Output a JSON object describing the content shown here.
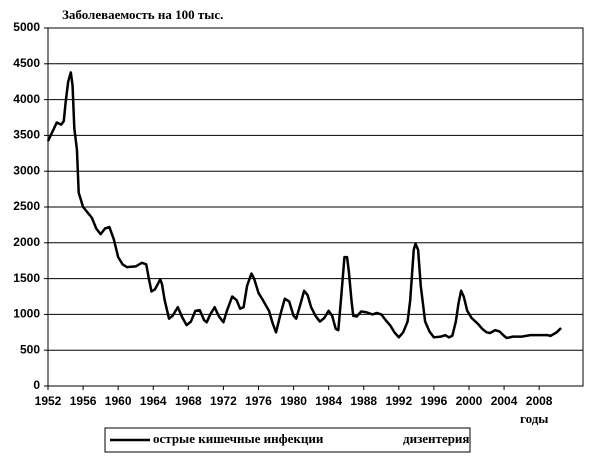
{
  "chart_data": {
    "type": "line",
    "title": "Заболеваемость на 100 тыс.",
    "x_label": "годы",
    "xlim": [
      1952,
      2013
    ],
    "ylim": [
      0,
      5000
    ],
    "xticks": [
      1952,
      1956,
      1960,
      1964,
      1968,
      1972,
      1976,
      1980,
      1984,
      1988,
      1992,
      1996,
      2000,
      2004,
      2008
    ],
    "yticks": [
      0,
      500,
      1000,
      1500,
      2000,
      2500,
      3000,
      3500,
      4000,
      4500,
      5000
    ],
    "grid": true,
    "series": [
      {
        "name": "острые кишечные инфекции",
        "color": "#000000",
        "x": [
          1952,
          1952.5,
          1953,
          1953.5,
          1953.8,
          1954,
          1954.3,
          1954.6,
          1954.8,
          1955,
          1955.3,
          1955.5,
          1956,
          1957,
          1957.5,
          1958,
          1958.5,
          1959,
          1959.5,
          1960,
          1960.5,
          1961,
          1962,
          1962.7,
          1963.2,
          1963.5,
          1963.8,
          1964.2,
          1964.8,
          1965,
          1965.3,
          1965.8,
          1966.2,
          1966.8,
          1967.3,
          1967.8,
          1968.3,
          1968.8,
          1969.3,
          1969.8,
          1970.1,
          1970.5,
          1971,
          1971.5,
          1972,
          1972.4,
          1973,
          1973.5,
          1973.9,
          1974.3,
          1974.7,
          1975.2,
          1975.5,
          1976,
          1976.5,
          1977.2,
          1977.6,
          1978,
          1978.5,
          1979,
          1979.5,
          1980,
          1980.3,
          1980.8,
          1981.2,
          1981.6,
          1982,
          1982.5,
          1983,
          1983.5,
          1984,
          1984.4,
          1984.8,
          1985.1,
          1985.4,
          1985.8,
          1986.1,
          1986.3,
          1986.6,
          1986.8,
          1987.2,
          1987.7,
          1988.3,
          1989,
          1989.5,
          1990,
          1990.5,
          1991,
          1991.5,
          1992,
          1992.5,
          1993,
          1993.3,
          1993.7,
          1993.9,
          1994.2,
          1994.5,
          1995,
          1995.5,
          1996,
          1996.8,
          1997.3,
          1997.7,
          1998.1,
          1998.5,
          1998.8,
          1999.1,
          1999.4,
          1999.8,
          2000.3,
          2001,
          2001.5,
          2002,
          2002.4,
          2003,
          2003.5,
          2004,
          2004.3,
          2005,
          2006,
          2007,
          2008,
          2009,
          2009.3,
          2010,
          2010.5
        ],
        "values": [
          3420,
          3550,
          3680,
          3650,
          3700,
          3950,
          4250,
          4380,
          4200,
          3600,
          3300,
          2700,
          2500,
          2350,
          2200,
          2120,
          2200,
          2220,
          2050,
          1800,
          1700,
          1660,
          1670,
          1720,
          1700,
          1500,
          1320,
          1350,
          1490,
          1420,
          1200,
          940,
          980,
          1100,
          960,
          850,
          900,
          1050,
          1060,
          920,
          890,
          1000,
          1100,
          970,
          890,
          1050,
          1250,
          1200,
          1080,
          1100,
          1400,
          1570,
          1500,
          1300,
          1200,
          1050,
          880,
          750,
          1000,
          1220,
          1180,
          980,
          940,
          1150,
          1330,
          1270,
          1100,
          980,
          900,
          950,
          1050,
          980,
          800,
          780,
          1200,
          1800,
          1800,
          1600,
          1200,
          980,
          970,
          1040,
          1030,
          1000,
          1020,
          1000,
          920,
          850,
          750,
          680,
          750,
          900,
          1200,
          1900,
          1990,
          1900,
          1400,
          900,
          760,
          680,
          690,
          710,
          680,
          700,
          900,
          1150,
          1330,
          1250,
          1050,
          950,
          870,
          800,
          750,
          740,
          780,
          760,
          700,
          670,
          690,
          690,
          710,
          710,
          710,
          700,
          750,
          810
        ]
      },
      {
        "name": "дизентерия",
        "color": "#ffffff",
        "x": [],
        "values": []
      }
    ]
  }
}
